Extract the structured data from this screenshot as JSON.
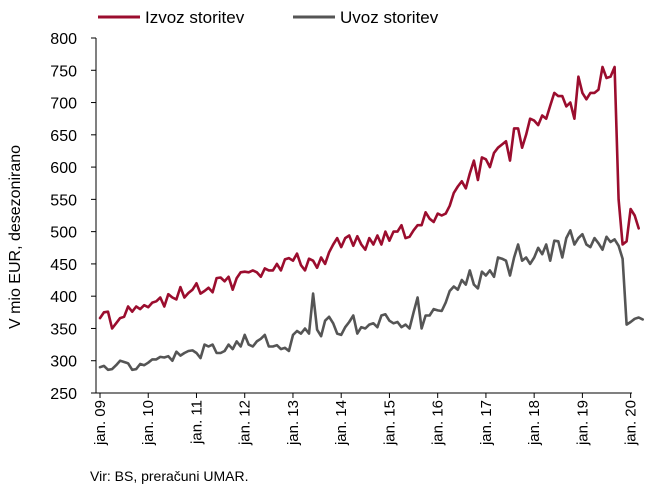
{
  "chart_data": {
    "type": "line",
    "title": "",
    "xlabel": "",
    "ylabel": "V mio EUR, desezonirano",
    "ylim": [
      250,
      800
    ],
    "yticks": [
      250,
      300,
      350,
      400,
      450,
      500,
      550,
      600,
      650,
      700,
      750,
      800
    ],
    "xtick_labels": [
      "jan. 09",
      "jan. 10",
      "jan. 11",
      "jan. 12",
      "jan. 13",
      "jan. 14",
      "jan. 15",
      "jan. 16",
      "jan. 17",
      "jan. 18",
      "jan. 19",
      "jan. 20"
    ],
    "frequency": "monthly",
    "start": "2009-01",
    "grid": false,
    "legend_position": "top",
    "source_note": "Vir: BS, preračuni UMAR.",
    "series": [
      {
        "name": "Izvoz storitev",
        "color": "#9b0d2e",
        "values": [
          366,
          375,
          376,
          350,
          358,
          366,
          368,
          384,
          376,
          384,
          380,
          386,
          383,
          390,
          392,
          398,
          384,
          403,
          398,
          395,
          414,
          398,
          405,
          410,
          420,
          404,
          408,
          413,
          406,
          428,
          429,
          423,
          430,
          410,
          428,
          437,
          438,
          437,
          440,
          437,
          430,
          443,
          440,
          440,
          450,
          440,
          457,
          459,
          455,
          466,
          448,
          440,
          458,
          455,
          444,
          460,
          450,
          468,
          480,
          490,
          476,
          490,
          494,
          478,
          493,
          480,
          472,
          490,
          480,
          494,
          480,
          500,
          486,
          500,
          500,
          510,
          490,
          492,
          502,
          510,
          510,
          530,
          520,
          515,
          528,
          525,
          528,
          540,
          560,
          570,
          578,
          567,
          590,
          610,
          580,
          615,
          612,
          600,
          622,
          630,
          635,
          640,
          610,
          660,
          660,
          630,
          650,
          675,
          672,
          665,
          680,
          675,
          695,
          715,
          710,
          710,
          694,
          700,
          675,
          740,
          715,
          705,
          715,
          715,
          720,
          755,
          738,
          740,
          755,
          550,
          480,
          485,
          535,
          525,
          505
        ]
      },
      {
        "name": "Uvoz storitev",
        "color": "#555555",
        "values": [
          290,
          292,
          286,
          287,
          293,
          300,
          298,
          296,
          286,
          287,
          295,
          293,
          297,
          302,
          302,
          306,
          305,
          307,
          300,
          314,
          308,
          312,
          315,
          316,
          312,
          304,
          325,
          322,
          325,
          312,
          312,
          315,
          325,
          318,
          330,
          322,
          340,
          325,
          322,
          330,
          334,
          340,
          322,
          322,
          324,
          318,
          320,
          315,
          340,
          346,
          342,
          350,
          342,
          404,
          348,
          338,
          362,
          368,
          358,
          342,
          340,
          352,
          360,
          370,
          342,
          352,
          350,
          356,
          358,
          352,
          370,
          372,
          362,
          358,
          360,
          352,
          356,
          350,
          375,
          398,
          350,
          370,
          370,
          380,
          378,
          377,
          390,
          408,
          415,
          410,
          425,
          418,
          440,
          418,
          412,
          438,
          432,
          440,
          430,
          460,
          458,
          455,
          432,
          460,
          480,
          455,
          460,
          450,
          460,
          475,
          465,
          480,
          455,
          486,
          485,
          460,
          490,
          502,
          480,
          490,
          496,
          480,
          476,
          490,
          482,
          472,
          492,
          484,
          488,
          478,
          458,
          356,
          360,
          365,
          367,
          364
        ]
      }
    ]
  }
}
